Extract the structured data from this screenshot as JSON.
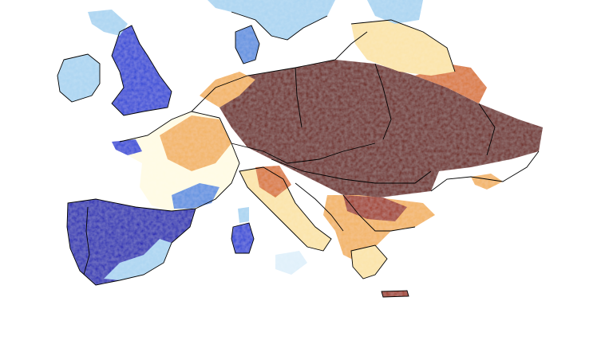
{
  "map": {
    "kind": "gridded anomaly raster over Europe",
    "palette": {
      "dry_extreme": "#6b1a12",
      "dry_strong": "#a0361c",
      "dry_moderate": "#d9752f",
      "dry_light": "#f2b25f",
      "dry_slight": "#fbe3a6",
      "near_normal": "#fffbe3",
      "wet_slight": "#dff0fa",
      "wet_light": "#a9d4f1",
      "wet_moderate": "#5b8fe0",
      "wet_strong": "#2741d6",
      "wet_extreme": "#1a1fb3"
    },
    "border_color": "#000000",
    "background_color": "#ffffff"
  }
}
